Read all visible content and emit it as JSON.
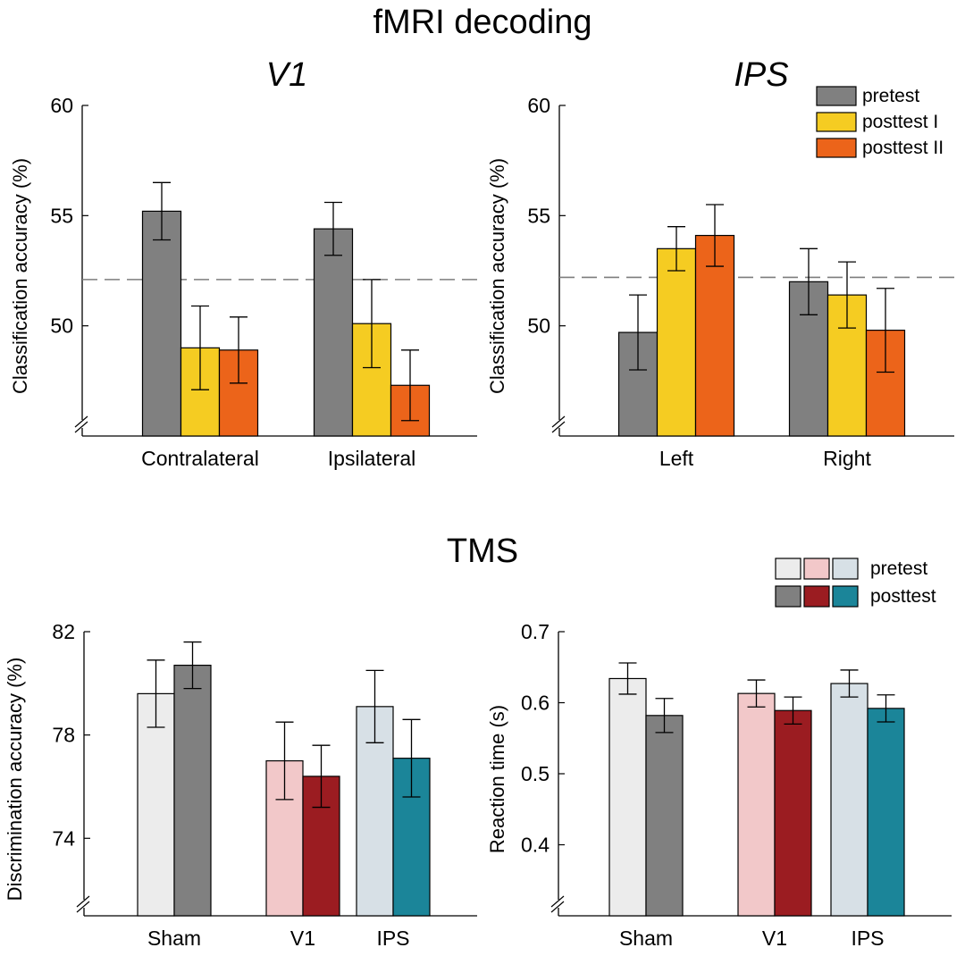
{
  "titles": {
    "fmri": "fMRI decoding",
    "tms": "TMS"
  },
  "chart_data": [
    {
      "id": "v1",
      "type": "bar",
      "title": "V1",
      "ylabel": "Classification accuracy (%)",
      "ylim": [
        45,
        60
      ],
      "yticks": [
        50,
        55,
        60
      ],
      "axis_break": true,
      "chance_line": 52.1,
      "categories": [
        "Contralateral",
        "Ipsilateral"
      ],
      "series": [
        {
          "name": "pretest",
          "color": "#808080",
          "values": [
            55.2,
            54.4
          ],
          "errors": [
            1.3,
            1.2
          ]
        },
        {
          "name": "posttest I",
          "color": "#f5cc22",
          "values": [
            49.0,
            50.1
          ],
          "errors": [
            1.9,
            2.0
          ]
        },
        {
          "name": "posttest II",
          "color": "#ec641a",
          "values": [
            48.9,
            47.3
          ],
          "errors": [
            1.5,
            1.6
          ]
        }
      ]
    },
    {
      "id": "ips",
      "type": "bar",
      "title": "IPS",
      "ylabel": "Classification accuracy (%)",
      "ylim": [
        45,
        60
      ],
      "yticks": [
        50,
        55,
        60
      ],
      "axis_break": true,
      "chance_line": 52.2,
      "categories": [
        "Left",
        "Right"
      ],
      "legend": "top-right",
      "series": [
        {
          "name": "pretest",
          "color": "#808080",
          "values": [
            49.7,
            52.0
          ],
          "errors": [
            1.7,
            1.5
          ]
        },
        {
          "name": "posttest I",
          "color": "#f5cc22",
          "values": [
            53.5,
            51.4
          ],
          "errors": [
            1.0,
            1.5
          ]
        },
        {
          "name": "posttest II",
          "color": "#ec641a",
          "values": [
            54.1,
            49.8
          ],
          "errors": [
            1.4,
            1.9
          ]
        }
      ]
    },
    {
      "id": "tms_acc",
      "type": "bar",
      "title": "",
      "ylabel": "Discrimination accuracy (%)",
      "ylim": [
        71,
        82
      ],
      "yticks": [
        74,
        78,
        82
      ],
      "axis_break": true,
      "categories": [
        "Sham",
        "V1",
        "IPS"
      ],
      "series": [
        {
          "name": "pretest",
          "values": [
            79.6,
            77.0,
            79.1
          ],
          "errors": [
            1.3,
            1.5,
            1.4
          ],
          "colors": [
            "#ececec",
            "#f2c8c9",
            "#d7e0e6"
          ]
        },
        {
          "name": "posttest",
          "values": [
            80.7,
            76.4,
            77.1
          ],
          "errors": [
            0.9,
            1.2,
            1.5
          ],
          "colors": [
            "#808080",
            "#9b1c21",
            "#1b8599"
          ]
        }
      ]
    },
    {
      "id": "tms_rt",
      "type": "bar",
      "title": "",
      "ylabel": "Reaction time (s)",
      "ylim": [
        0.3,
        0.7
      ],
      "yticks": [
        0.4,
        0.5,
        0.6,
        0.7
      ],
      "axis_break": true,
      "categories": [
        "Sham",
        "V1",
        "IPS"
      ],
      "legend": "top-right",
      "series": [
        {
          "name": "pretest",
          "values": [
            0.634,
            0.613,
            0.627
          ],
          "errors": [
            0.022,
            0.019,
            0.019
          ],
          "colors": [
            "#ececec",
            "#f2c8c9",
            "#d7e0e6"
          ]
        },
        {
          "name": "posttest",
          "values": [
            0.582,
            0.589,
            0.592
          ],
          "errors": [
            0.024,
            0.019,
            0.019
          ],
          "colors": [
            "#808080",
            "#9b1c21",
            "#1b8599"
          ]
        }
      ]
    }
  ]
}
